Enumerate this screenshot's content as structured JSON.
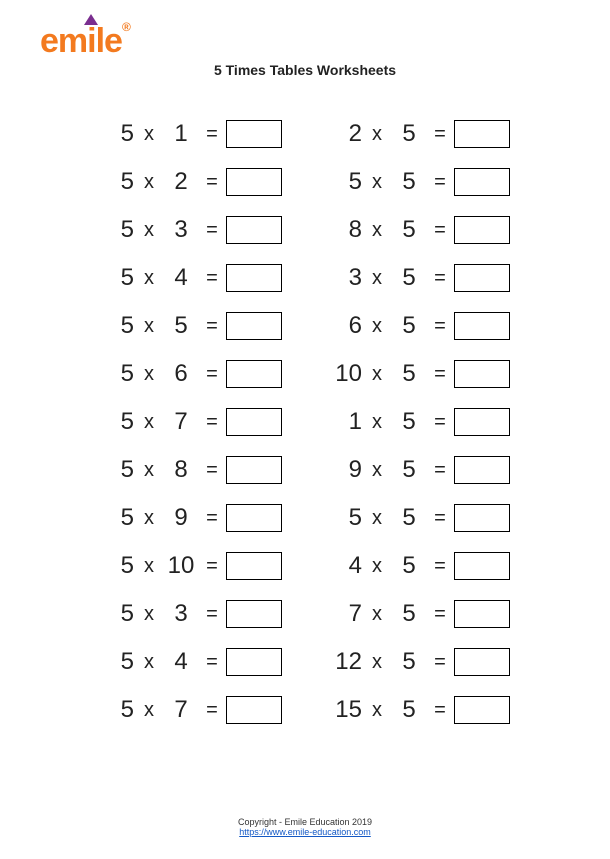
{
  "logo_text": "emile",
  "logo_reg": "®",
  "title": "5 Times Tables Worksheets",
  "times_symbol": "x",
  "equals_symbol": "=",
  "left_column": [
    {
      "a": "5",
      "b": "1"
    },
    {
      "a": "5",
      "b": "2"
    },
    {
      "a": "5",
      "b": "3"
    },
    {
      "a": "5",
      "b": "4"
    },
    {
      "a": "5",
      "b": "5"
    },
    {
      "a": "5",
      "b": "6"
    },
    {
      "a": "5",
      "b": "7"
    },
    {
      "a": "5",
      "b": "8"
    },
    {
      "a": "5",
      "b": "9"
    },
    {
      "a": "5",
      "b": "10"
    },
    {
      "a": "5",
      "b": "3"
    },
    {
      "a": "5",
      "b": "4"
    },
    {
      "a": "5",
      "b": "7"
    }
  ],
  "right_column": [
    {
      "a": "2",
      "b": "5"
    },
    {
      "a": "5",
      "b": "5"
    },
    {
      "a": "8",
      "b": "5"
    },
    {
      "a": "3",
      "b": "5"
    },
    {
      "a": "6",
      "b": "5"
    },
    {
      "a": "10",
      "b": "5"
    },
    {
      "a": "1",
      "b": "5"
    },
    {
      "a": "9",
      "b": "5"
    },
    {
      "a": "5",
      "b": "5"
    },
    {
      "a": "4",
      "b": "5"
    },
    {
      "a": "7",
      "b": "5"
    },
    {
      "a": "12",
      "b": "5"
    },
    {
      "a": "15",
      "b": "5"
    }
  ],
  "footer": {
    "copyright": "Copyright - Emile Education 2019",
    "url_text": "https://www.emile-education.com"
  }
}
